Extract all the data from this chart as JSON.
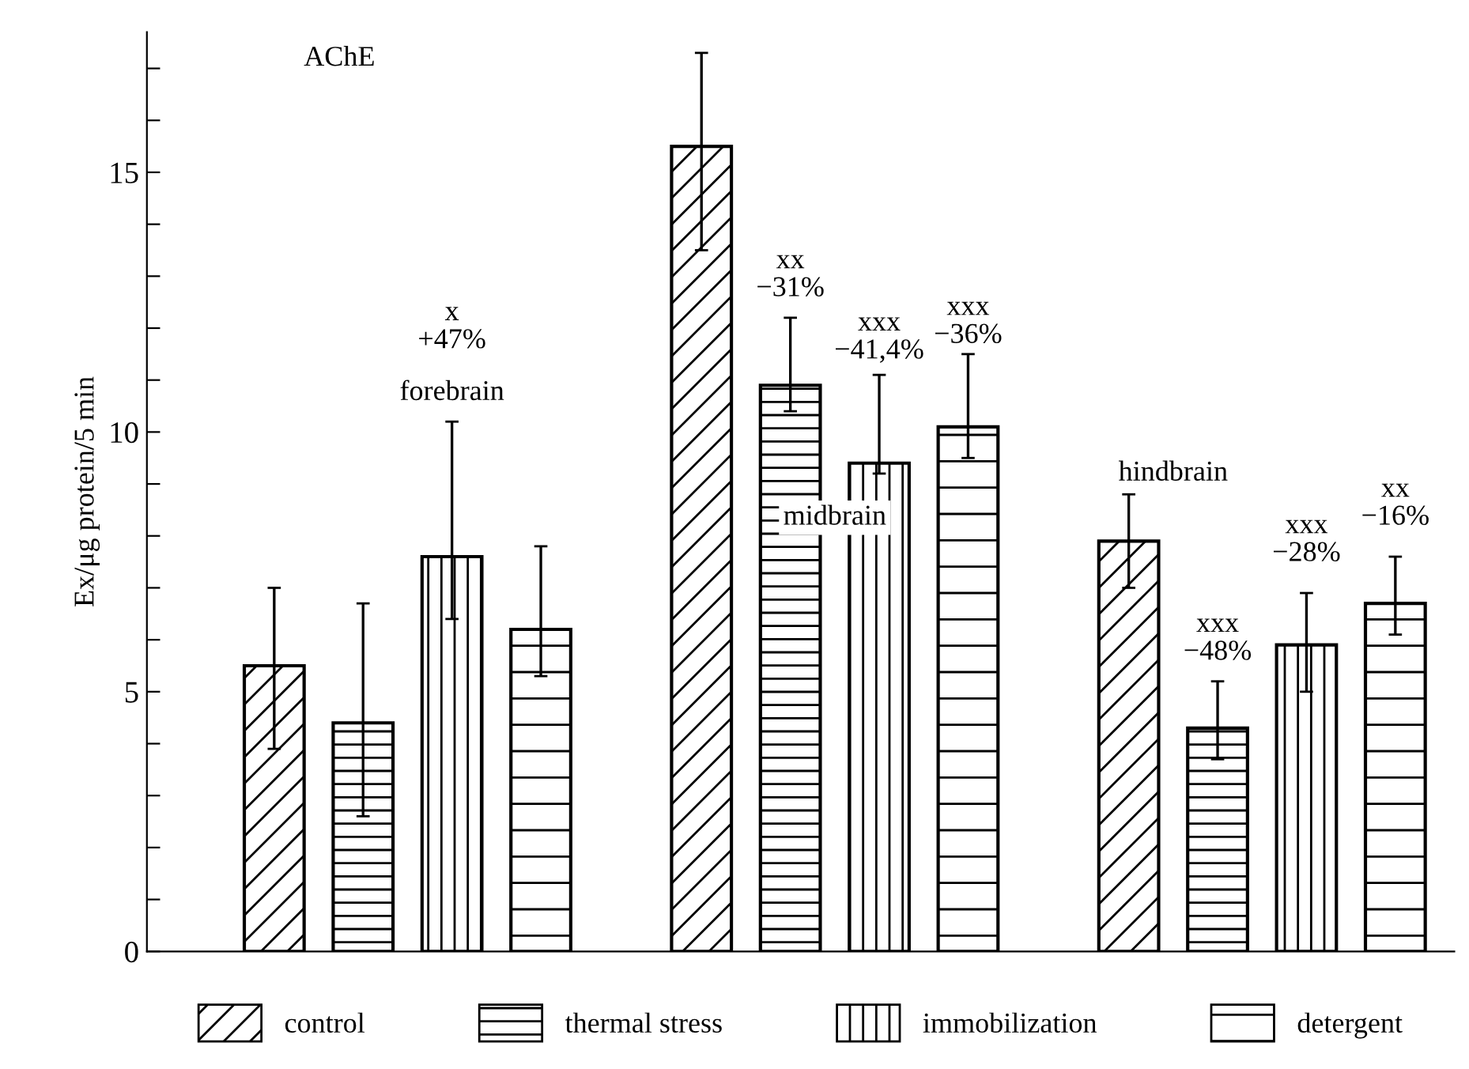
{
  "chart_data": {
    "type": "bar",
    "title": "AChE",
    "ylabel": "Ex/μg protein/5 min",
    "categories": [
      "forebrain",
      "midbrain",
      "hindbrain"
    ],
    "series": [
      {
        "name": "control",
        "color": "#000000",
        "values": [
          5.5,
          15.5,
          7.9
        ],
        "errors": [
          [
            3.9,
            7.0
          ],
          [
            13.5,
            17.3
          ],
          [
            7.0,
            8.8
          ]
        ]
      },
      {
        "name": "thermal stress",
        "color": "#000000",
        "values": [
          4.4,
          10.9,
          4.3
        ],
        "errors": [
          [
            2.6,
            6.7
          ],
          [
            10.4,
            12.2
          ],
          [
            3.7,
            5.2
          ]
        ]
      },
      {
        "name": "immobilization",
        "color": "#000000",
        "values": [
          7.6,
          9.4,
          5.9
        ],
        "errors": [
          [
            6.4,
            10.2
          ],
          [
            9.2,
            11.1
          ],
          [
            5.0,
            6.9
          ]
        ]
      },
      {
        "name": "detergent",
        "color": "#000000",
        "values": [
          6.2,
          10.1,
          6.7
        ],
        "errors": [
          [
            5.3,
            7.8
          ],
          [
            9.5,
            11.5
          ],
          [
            6.1,
            7.6
          ]
        ]
      }
    ],
    "annotations": [
      "x\n+47%",
      "xx\n−31%",
      "xxx\n−41,4%",
      "xxx\n−36%",
      "xxx\n−48%",
      "xxx\n−28%",
      "xx\n−16%"
    ],
    "ylim": [
      0,
      17.7
    ],
    "yticks": [
      0,
      {
        "value": 1,
        "label": null
      },
      {
        "value": 2,
        "label": null
      },
      {
        "value": 3,
        "label": null
      },
      {
        "value": 4,
        "label": null
      },
      5,
      {
        "value": 6,
        "label": null
      },
      {
        "value": 7,
        "label": null
      },
      {
        "value": 8,
        "label": null
      },
      {
        "value": 9,
        "label": null
      },
      10,
      {
        "value": 11,
        "label": null
      },
      {
        "value": 12,
        "label": null
      },
      {
        "value": 13,
        "label": null
      },
      {
        "value": 14,
        "label": null
      },
      15,
      {
        "value": 16,
        "label": null
      },
      {
        "value": 17,
        "label": null
      }
    ],
    "tick_labels": "y",
    "grid": false,
    "legend": "bottom"
  }
}
